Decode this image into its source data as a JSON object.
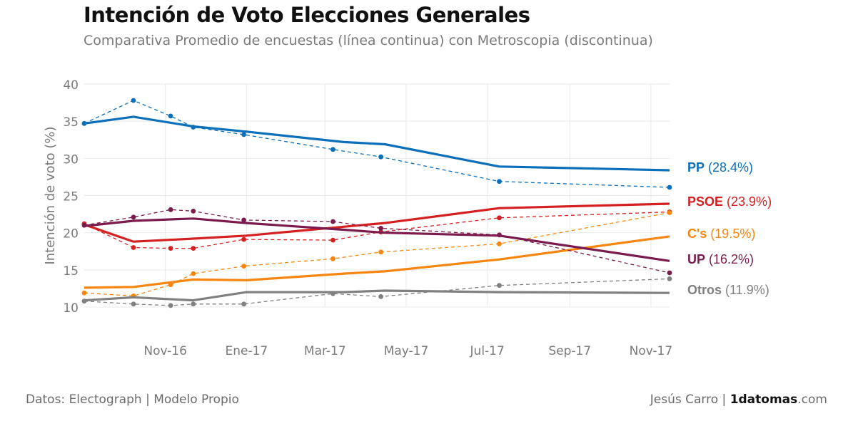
{
  "header": {
    "title": "Intención de Voto Elecciones Generales",
    "subtitle": "Comparativa Promedio de encuestas (línea continua) con Metroscopia (discontinua)"
  },
  "footer": {
    "source": "Datos: Electograph | Modelo Propio",
    "author": "Jesús Carro",
    "separator": " | ",
    "brand_bold": "1datomas",
    "brand_suffix": ".com"
  },
  "chart_data": {
    "type": "line",
    "ylabel": "Intención de voto (%)",
    "xlabel": "",
    "ylim": [
      10,
      40
    ],
    "yticks": [
      10,
      15,
      20,
      25,
      30,
      35,
      40
    ],
    "xlim": [
      "2016-09-01",
      "2017-11-15"
    ],
    "xticks": [
      {
        "date": "2016-11-01",
        "label": "Nov-16"
      },
      {
        "date": "2017-01-01",
        "label": "Ene-17"
      },
      {
        "date": "2017-03-01",
        "label": "Mar-17"
      },
      {
        "date": "2017-05-01",
        "label": "May-17"
      },
      {
        "date": "2017-07-01",
        "label": "Jul-17"
      },
      {
        "date": "2017-09-01",
        "label": "Sep-17"
      },
      {
        "date": "2017-11-01",
        "label": "Nov-17"
      }
    ],
    "grid": true,
    "series": [
      {
        "name": "PP",
        "label_value": "(28.4%)",
        "color": "#0b6fba",
        "average": [
          [
            "2016-09-01",
            34.7
          ],
          [
            "2016-10-08",
            35.6
          ],
          [
            "2016-11-22",
            34.3
          ],
          [
            "2017-01-01",
            33.6
          ],
          [
            "2017-03-15",
            32.2
          ],
          [
            "2017-04-15",
            31.9
          ],
          [
            "2017-07-10",
            28.9
          ],
          [
            "2017-11-15",
            28.4
          ]
        ],
        "metroscopia": [
          [
            "2016-09-01",
            34.7
          ],
          [
            "2016-10-08",
            37.8
          ],
          [
            "2016-11-05",
            35.7
          ],
          [
            "2016-11-22",
            34.2
          ],
          [
            "2016-12-30",
            33.2
          ],
          [
            "2017-03-07",
            31.2
          ],
          [
            "2017-04-12",
            30.2
          ],
          [
            "2017-07-10",
            26.9
          ],
          [
            "2017-11-15",
            26.1
          ]
        ]
      },
      {
        "name": "PSOE",
        "label_value": "(23.9%)",
        "color": "#d42020",
        "average": [
          [
            "2016-09-01",
            21.1
          ],
          [
            "2016-10-08",
            18.8
          ],
          [
            "2016-11-22",
            19.2
          ],
          [
            "2017-01-01",
            19.6
          ],
          [
            "2017-03-15",
            20.8
          ],
          [
            "2017-04-15",
            21.3
          ],
          [
            "2017-07-10",
            23.3
          ],
          [
            "2017-11-15",
            23.9
          ]
        ],
        "metroscopia": [
          [
            "2016-09-01",
            21.2
          ],
          [
            "2016-10-08",
            18.0
          ],
          [
            "2016-11-05",
            17.9
          ],
          [
            "2016-11-22",
            17.9
          ],
          [
            "2016-12-30",
            19.1
          ],
          [
            "2017-03-07",
            19.0
          ],
          [
            "2017-04-12",
            20.1
          ],
          [
            "2017-07-10",
            22.0
          ],
          [
            "2017-11-15",
            22.8
          ]
        ]
      },
      {
        "name": "C's",
        "label_value": "(19.5%)",
        "color": "#f6860f",
        "average": [
          [
            "2016-09-01",
            12.6
          ],
          [
            "2016-10-08",
            12.7
          ],
          [
            "2016-11-22",
            13.7
          ],
          [
            "2017-01-01",
            13.6
          ],
          [
            "2017-03-15",
            14.5
          ],
          [
            "2017-04-15",
            14.8
          ],
          [
            "2017-07-10",
            16.4
          ],
          [
            "2017-11-15",
            19.5
          ]
        ],
        "metroscopia": [
          [
            "2016-09-01",
            11.9
          ],
          [
            "2016-10-08",
            11.5
          ],
          [
            "2016-11-05",
            13.0
          ],
          [
            "2016-11-22",
            14.5
          ],
          [
            "2016-12-30",
            15.5
          ],
          [
            "2017-03-07",
            16.5
          ],
          [
            "2017-04-12",
            17.4
          ],
          [
            "2017-07-10",
            18.5
          ],
          [
            "2017-11-15",
            22.7
          ]
        ]
      },
      {
        "name": "UP",
        "label_value": "(16.2%)",
        "color": "#7b1a4c",
        "average": [
          [
            "2016-09-01",
            20.9
          ],
          [
            "2016-10-08",
            21.6
          ],
          [
            "2016-11-22",
            21.9
          ],
          [
            "2017-01-01",
            21.3
          ],
          [
            "2017-03-15",
            20.4
          ],
          [
            "2017-04-15",
            20.0
          ],
          [
            "2017-07-10",
            19.6
          ],
          [
            "2017-11-15",
            16.2
          ]
        ],
        "metroscopia": [
          [
            "2016-09-01",
            21.0
          ],
          [
            "2016-10-08",
            22.1
          ],
          [
            "2016-11-05",
            23.1
          ],
          [
            "2016-11-22",
            22.9
          ],
          [
            "2016-12-30",
            21.7
          ],
          [
            "2017-03-07",
            21.5
          ],
          [
            "2017-04-12",
            20.6
          ],
          [
            "2017-07-10",
            19.7
          ],
          [
            "2017-11-15",
            14.6
          ]
        ]
      },
      {
        "name": "Otros",
        "label_value": "(11.9%)",
        "color": "#808080",
        "average": [
          [
            "2016-09-01",
            10.9
          ],
          [
            "2016-10-08",
            11.3
          ],
          [
            "2016-11-22",
            10.9
          ],
          [
            "2017-01-01",
            12.0
          ],
          [
            "2017-03-15",
            12.0
          ],
          [
            "2017-04-15",
            12.2
          ],
          [
            "2017-07-10",
            12.0
          ],
          [
            "2017-11-15",
            11.9
          ]
        ],
        "metroscopia": [
          [
            "2016-09-01",
            10.8
          ],
          [
            "2016-10-08",
            10.4
          ],
          [
            "2016-11-05",
            10.2
          ],
          [
            "2016-11-22",
            10.4
          ],
          [
            "2016-12-30",
            10.4
          ],
          [
            "2017-03-07",
            11.8
          ],
          [
            "2017-04-12",
            11.4
          ],
          [
            "2017-07-10",
            12.9
          ],
          [
            "2017-11-15",
            13.8
          ]
        ]
      }
    ]
  }
}
